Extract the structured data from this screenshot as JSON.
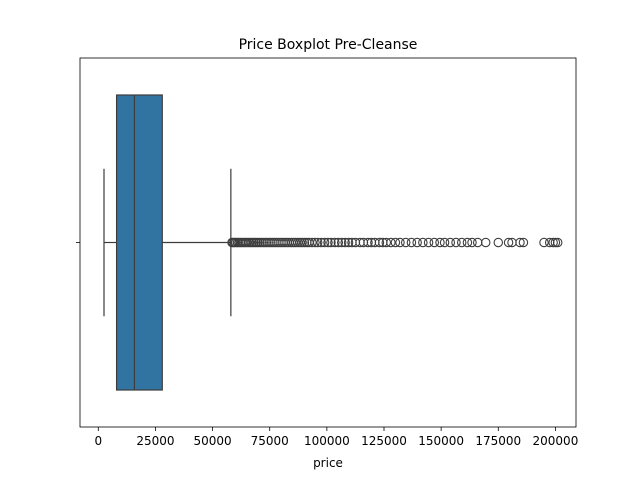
{
  "chart_data": {
    "type": "boxplot",
    "orientation": "horizontal",
    "title": "Price Boxplot Pre-Cleanse",
    "xlabel": "price",
    "ylabel": "",
    "xlim": [
      -8000,
      209000
    ],
    "xticks": [
      0,
      25000,
      50000,
      75000,
      100000,
      125000,
      150000,
      175000,
      200000
    ],
    "yticks_labels": [
      ""
    ],
    "grid": false,
    "box": {
      "whisker_low": 2500,
      "q1": 8000,
      "median": 15800,
      "q3": 28000,
      "whisker_high": 58000
    },
    "outliers": [
      58500,
      59000,
      59600,
      60200,
      60900,
      61500,
      62200,
      62900,
      63600,
      64300,
      65000,
      65800,
      66500,
      67300,
      68100,
      68900,
      69700,
      70500,
      71300,
      72200,
      73000,
      73800,
      74700,
      75500,
      76400,
      77200,
      78100,
      79000,
      79900,
      80800,
      81700,
      82600,
      83500,
      84500,
      85400,
      86300,
      87300,
      88300,
      89200,
      90200,
      91200,
      92200,
      93500,
      94800,
      96000,
      97500,
      99000,
      100500,
      101800,
      103500,
      105000,
      106500,
      108000,
      109500,
      111000,
      112500,
      114500,
      116000,
      118000,
      119500,
      121000,
      123000,
      124500,
      126000,
      128000,
      130000,
      132000,
      134500,
      137000,
      139500,
      142000,
      144500,
      147000,
      149500,
      151500,
      154000,
      156500,
      159000,
      161500,
      163500,
      166000,
      169500,
      175000,
      179500,
      181000,
      184500,
      186000,
      195000,
      197500,
      199000,
      200000,
      201000
    ],
    "colors": {
      "box_fill": "#3274a1",
      "line": "#3d3d3d"
    }
  }
}
